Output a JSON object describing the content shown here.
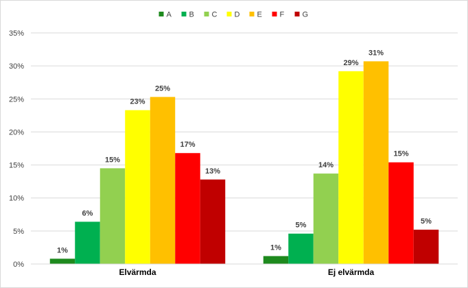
{
  "chart_data": {
    "type": "bar",
    "categories": [
      "Elvärmda",
      "Ej elvärmda"
    ],
    "series": [
      {
        "name": "A",
        "color": "#1e8a1e",
        "values": [
          0.8,
          1.2
        ],
        "labels": [
          "1%",
          "1%"
        ]
      },
      {
        "name": "B",
        "color": "#00b050",
        "values": [
          6.4,
          4.6
        ],
        "labels": [
          "6%",
          "5%"
        ]
      },
      {
        "name": "C",
        "color": "#92d050",
        "values": [
          14.5,
          13.7
        ],
        "labels": [
          "15%",
          "14%"
        ]
      },
      {
        "name": "D",
        "color": "#ffff00",
        "values": [
          23.3,
          29.2
        ],
        "labels": [
          "23%",
          "29%"
        ]
      },
      {
        "name": "E",
        "color": "#ffc000",
        "values": [
          25.3,
          30.7
        ],
        "labels": [
          "25%",
          "31%"
        ]
      },
      {
        "name": "F",
        "color": "#ff0000",
        "values": [
          16.8,
          15.4
        ],
        "labels": [
          "17%",
          "15%"
        ]
      },
      {
        "name": "G",
        "color": "#c00000",
        "values": [
          12.8,
          5.2
        ],
        "labels": [
          "13%",
          "5%"
        ]
      }
    ],
    "y_ticks": [
      "0%",
      "5%",
      "10%",
      "15%",
      "20%",
      "25%",
      "30%",
      "35%"
    ],
    "ylim": [
      0,
      35
    ],
    "grid": true,
    "legend_position": "top-center",
    "title": "",
    "xlabel": "",
    "ylabel": ""
  }
}
